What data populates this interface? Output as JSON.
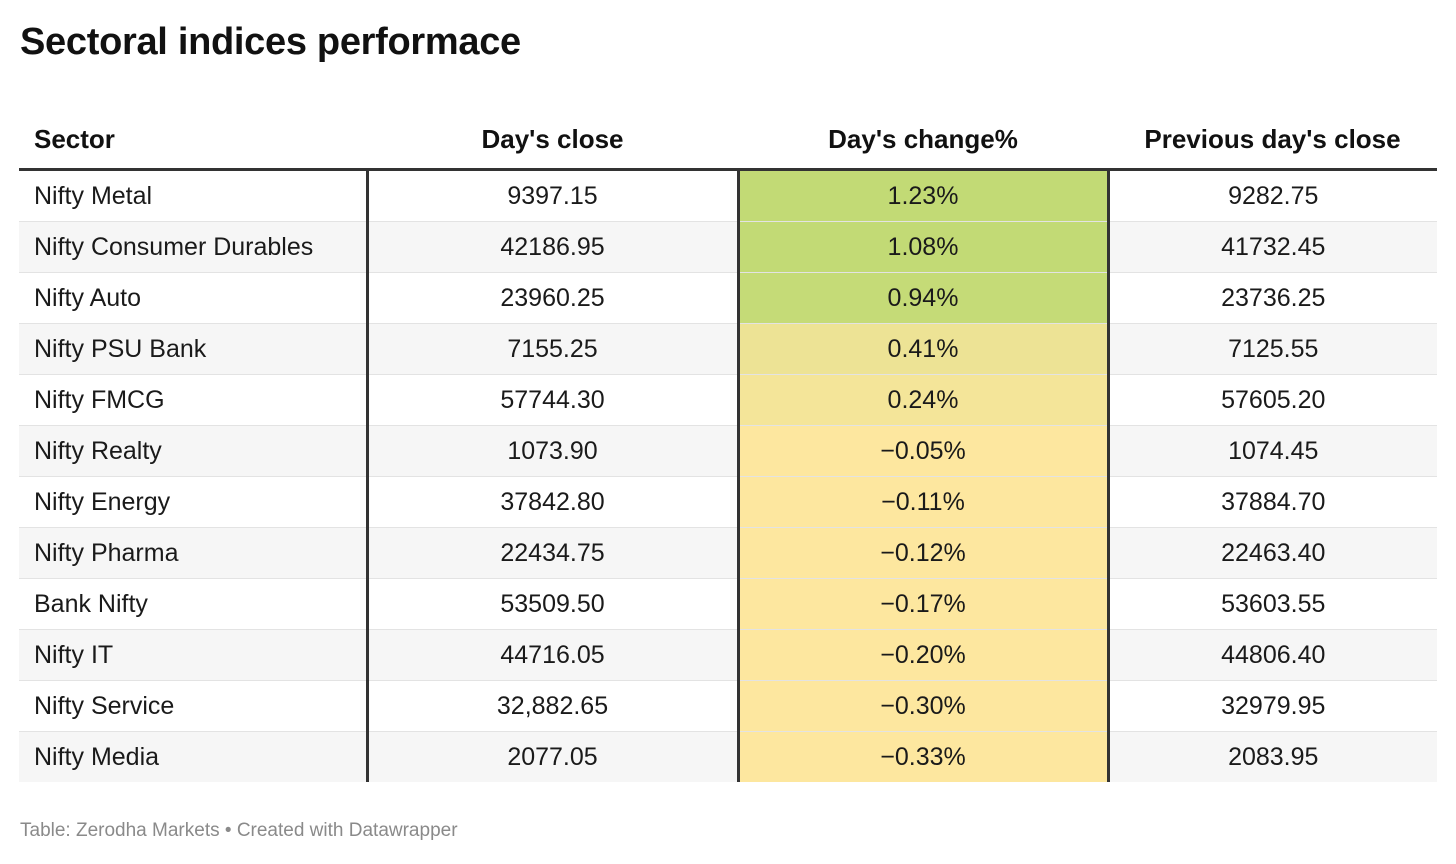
{
  "title": "Sectoral indices performace",
  "footer": {
    "source": "Table: Zerodha Markets",
    "separator": " • ",
    "credit": "Created with Datawrapper"
  },
  "colors": {
    "heat_high": "#c2da75",
    "heat_mid": "#ece394",
    "heat_low": "#fde79f"
  },
  "chart_data": {
    "type": "table",
    "title": "Sectoral indices performace",
    "columns": [
      "Sector",
      "Day's close",
      "Day's change%",
      "Previous day's close"
    ],
    "rows": [
      {
        "sector": "Nifty Metal",
        "close": "9397.15",
        "change": "1.23%",
        "change_value": 1.23,
        "prev_close": "9282.75"
      },
      {
        "sector": "Nifty Consumer Durables",
        "close": "42186.95",
        "change": "1.08%",
        "change_value": 1.08,
        "prev_close": "41732.45"
      },
      {
        "sector": "Nifty Auto",
        "close": "23960.25",
        "change": "0.94%",
        "change_value": 0.94,
        "prev_close": "23736.25"
      },
      {
        "sector": "Nifty PSU Bank",
        "close": "7155.25",
        "change": "0.41%",
        "change_value": 0.41,
        "prev_close": "7125.55"
      },
      {
        "sector": "Nifty FMCG",
        "close": "57744.30",
        "change": "0.24%",
        "change_value": 0.24,
        "prev_close": "57605.20"
      },
      {
        "sector": "Nifty Realty",
        "close": "1073.90",
        "change": "−0.05%",
        "change_value": -0.05,
        "prev_close": "1074.45"
      },
      {
        "sector": "Nifty Energy",
        "close": "37842.80",
        "change": "−0.11%",
        "change_value": -0.11,
        "prev_close": "37884.70"
      },
      {
        "sector": "Nifty Pharma",
        "close": "22434.75",
        "change": "−0.12%",
        "change_value": -0.12,
        "prev_close": "22463.40"
      },
      {
        "sector": "Bank Nifty",
        "close": "53509.50",
        "change": "−0.17%",
        "change_value": -0.17,
        "prev_close": "53603.55"
      },
      {
        "sector": "Nifty IT",
        "close": "44716.05",
        "change": "−0.20%",
        "change_value": -0.2,
        "prev_close": "44806.40"
      },
      {
        "sector": "Nifty Service",
        "close": "32,882.65",
        "change": "−0.30%",
        "change_value": -0.3,
        "prev_close": "32979.95"
      },
      {
        "sector": "Nifty Media",
        "close": "2077.05",
        "change": "−0.33%",
        "change_value": -0.33,
        "prev_close": "2083.95"
      }
    ]
  }
}
